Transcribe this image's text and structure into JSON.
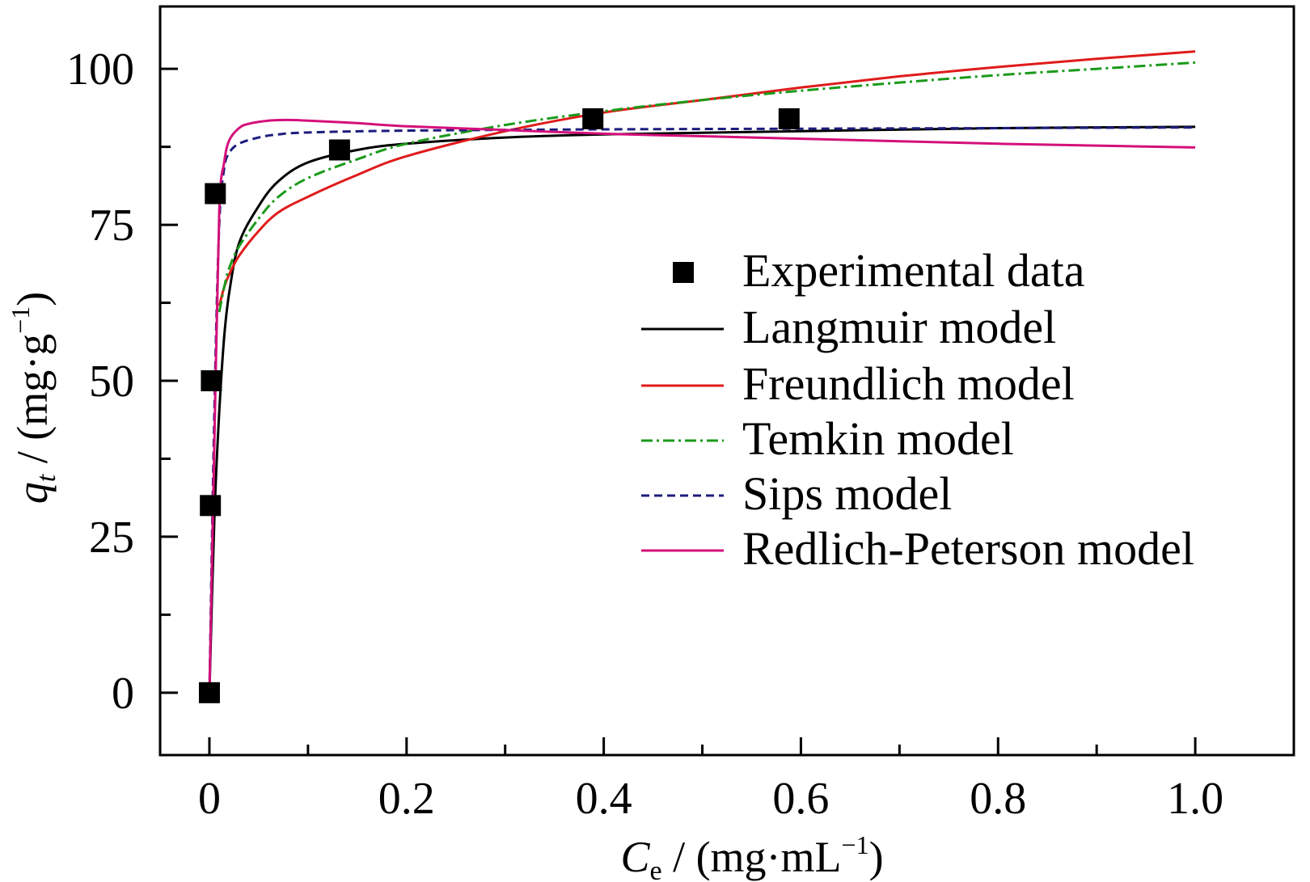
{
  "chart_data": {
    "type": "scatter",
    "title": "",
    "xlabel": {
      "symbol": "C",
      "subscript": "e",
      "unit_prefix": " / (mg·mL",
      "exponent": "−1",
      "unit_suffix": ")"
    },
    "ylabel": {
      "symbol": "q",
      "subscript": "t",
      "unit_prefix": " / (mg·g",
      "exponent": "−1",
      "unit_suffix": ")"
    },
    "xlim": [
      -0.05,
      1.1
    ],
    "ylim": [
      -10,
      110
    ],
    "xticks": [
      0,
      0.2,
      0.4,
      0.6,
      0.8,
      1.0
    ],
    "xtick_labels": [
      "0",
      "0.2",
      "0.4",
      "0.6",
      "0.8",
      "1.0"
    ],
    "xminor": [
      0.1,
      0.3,
      0.5,
      0.7,
      0.9
    ],
    "yticks": [
      0,
      25,
      50,
      75,
      100
    ],
    "ytick_labels": [
      "0",
      "25",
      "50",
      "75",
      "100"
    ],
    "yminor": [
      12.5,
      37.5,
      62.5,
      87.5
    ],
    "grid": false,
    "legend_position": "center-right",
    "experimental": {
      "name": "Experimental data",
      "color": "#000000",
      "x": [
        0.0,
        0.001,
        0.002,
        0.006,
        0.132,
        0.389,
        0.588
      ],
      "y": [
        0,
        30,
        50,
        80,
        87,
        92,
        92
      ]
    },
    "series": [
      {
        "name": "Langmuir model",
        "color": "#000000",
        "dash": "solid",
        "x": [
          0,
          0.005,
          0.01,
          0.015,
          0.02,
          0.03,
          0.05,
          0.07,
          0.1,
          0.15,
          0.2,
          0.3,
          0.4,
          0.6,
          0.8,
          1.0
        ],
        "y": [
          0,
          28,
          45,
          57,
          64,
          72,
          78,
          82,
          85,
          87,
          88,
          89,
          89.5,
          90,
          90.5,
          90.7
        ]
      },
      {
        "name": "Freundlich model",
        "color": "#e01b1b",
        "dash": "solid",
        "x": [
          0.01,
          0.015,
          0.02,
          0.03,
          0.05,
          0.07,
          0.1,
          0.15,
          0.2,
          0.3,
          0.4,
          0.5,
          0.6,
          0.7,
          0.8,
          0.9,
          1.0
        ],
        "y": [
          62,
          65,
          67,
          70,
          74,
          77,
          79.5,
          83,
          86,
          90,
          93,
          95,
          97,
          98.8,
          100.3,
          101.6,
          102.8
        ]
      },
      {
        "name": "Temkin model",
        "color": "#1a9a1a",
        "dash": "dashdot",
        "x": [
          0.01,
          0.015,
          0.02,
          0.03,
          0.05,
          0.07,
          0.1,
          0.15,
          0.2,
          0.3,
          0.4,
          0.5,
          0.6,
          0.7,
          0.8,
          0.9,
          1.0
        ],
        "y": [
          61,
          65,
          68,
          71.5,
          76,
          79.5,
          82.5,
          85.5,
          88,
          91,
          93.2,
          95,
          96.5,
          97.8,
          99,
          100,
          101
        ]
      },
      {
        "name": "Sips model",
        "color": "#1c1c7e",
        "dash": "dashed",
        "x": [
          0,
          0.005,
          0.01,
          0.015,
          0.02,
          0.03,
          0.05,
          0.07,
          0.1,
          0.2,
          0.4,
          0.6,
          0.8,
          1.0
        ],
        "y": [
          0,
          45,
          75,
          84,
          86.5,
          88,
          89,
          89.5,
          89.8,
          90.1,
          90.3,
          90.4,
          90.5,
          90.6
        ]
      },
      {
        "name": "Redlich-Peterson model",
        "color": "#d4107a",
        "dash": "solid",
        "x": [
          0,
          0.005,
          0.01,
          0.015,
          0.02,
          0.03,
          0.04,
          0.06,
          0.08,
          0.1,
          0.15,
          0.2,
          0.3,
          0.4,
          0.5,
          0.6,
          0.7,
          0.8,
          0.9,
          1.0
        ],
        "y": [
          0,
          40,
          77,
          85,
          88.5,
          90.5,
          91.2,
          91.7,
          91.8,
          91.7,
          91.3,
          90.8,
          90.2,
          89.6,
          89.2,
          88.8,
          88.4,
          88.0,
          87.7,
          87.4
        ]
      }
    ]
  }
}
